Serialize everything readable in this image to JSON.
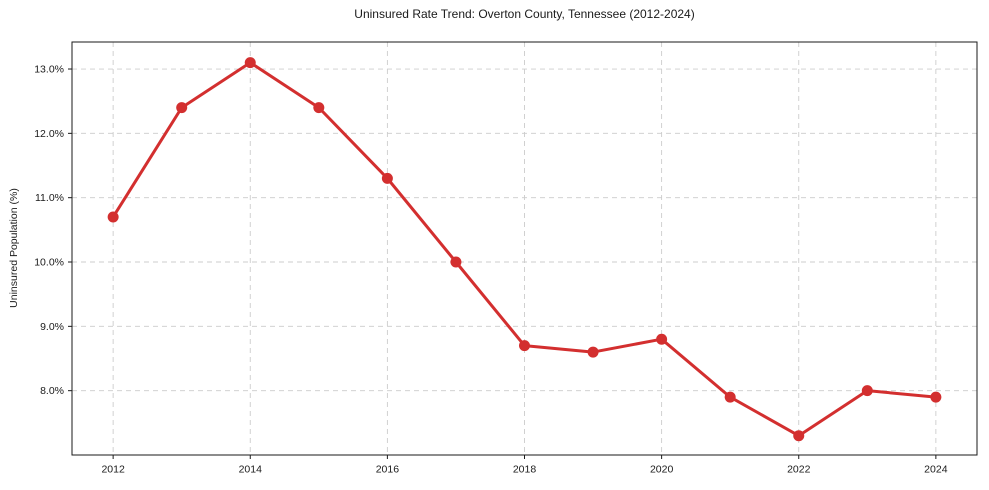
{
  "page": {
    "background": "#ffffff"
  },
  "chart_data": {
    "type": "line",
    "title": "Uninsured Rate Trend: Overton County, Tennessee (2012-2024)",
    "xlabel": "",
    "ylabel": "Uninsured Population (%)",
    "x": [
      2012,
      2013,
      2014,
      2015,
      2016,
      2017,
      2018,
      2019,
      2020,
      2021,
      2022,
      2023,
      2024
    ],
    "values": [
      10.7,
      12.4,
      13.1,
      12.4,
      11.3,
      10.0,
      8.7,
      8.6,
      8.8,
      7.9,
      7.3,
      8.0,
      7.9
    ],
    "line_color": "#d32f2f",
    "xlim": [
      2011.4,
      2024.6
    ],
    "ylim": [
      7.0,
      13.42
    ],
    "x_ticks": {
      "values": [
        2012,
        2014,
        2016,
        2018,
        2020,
        2022,
        2024
      ],
      "labels": [
        "2012",
        "2014",
        "2016",
        "2018",
        "2020",
        "2022",
        "2024"
      ]
    },
    "y_ticks": {
      "values": [
        8,
        9,
        10,
        11,
        12,
        13
      ],
      "labels": [
        "8.0%",
        "9.0%",
        "10.0%",
        "11.0%",
        "12.0%",
        "13.0%"
      ]
    },
    "grid": true,
    "legend": "none",
    "style": {
      "line_width": 3,
      "marker": "circle",
      "marker_radius": 5.5,
      "grid_color": "#cccccc",
      "grid_dash": "5 4",
      "grid_width": 0.9,
      "axis_color": "#1a1a1a",
      "plot_bg": "#ffffff",
      "tick_length": 4
    }
  }
}
